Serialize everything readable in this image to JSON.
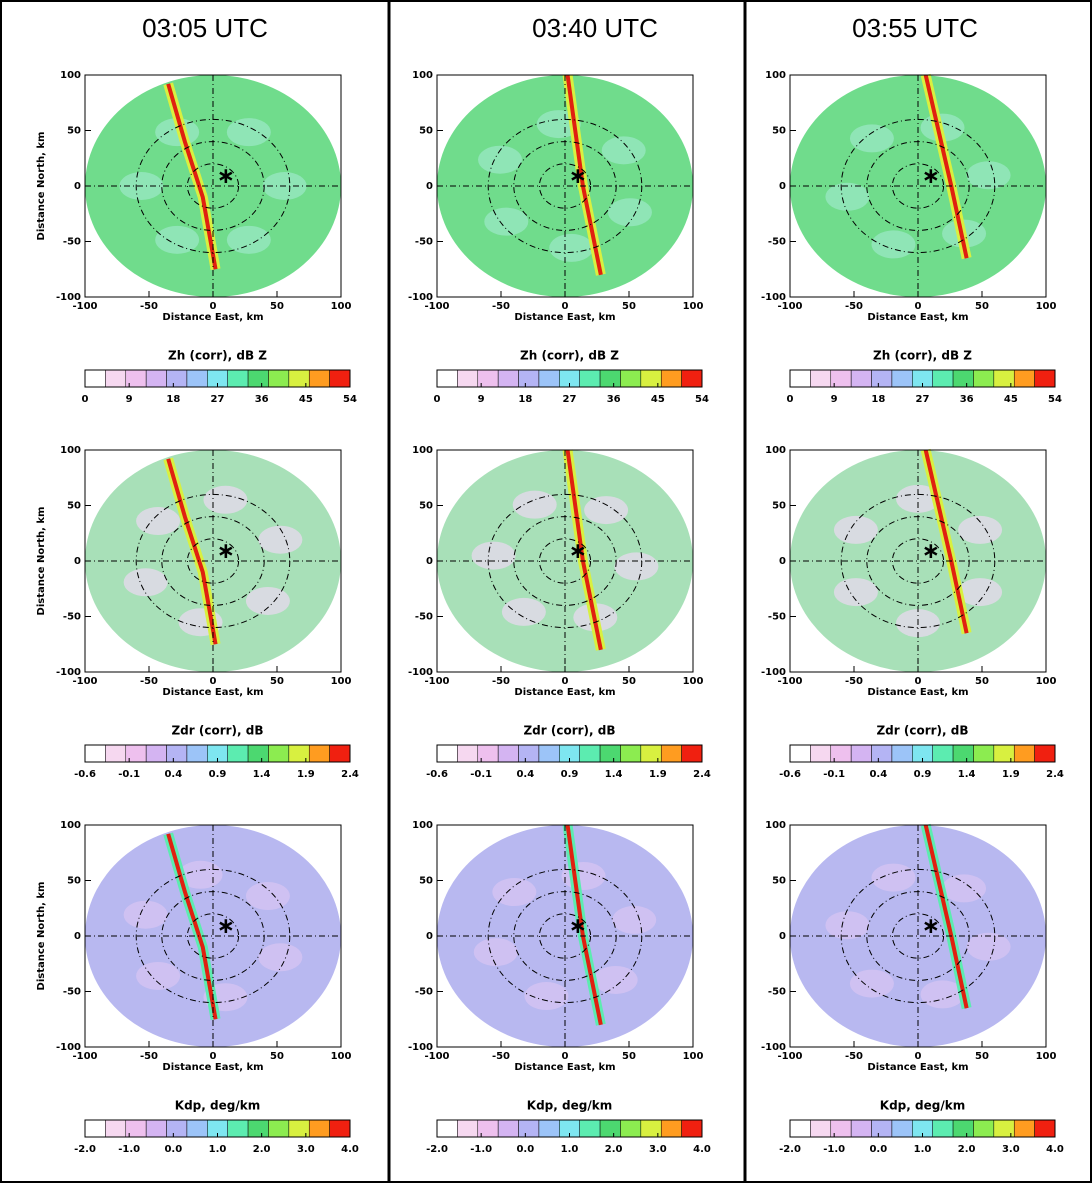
{
  "columns": [
    {
      "title": "03:05 UTC"
    },
    {
      "title": "03:40 UTC"
    },
    {
      "title": "03:55 UTC"
    }
  ],
  "panel": {
    "xlabel": "Distance East, km",
    "ylabel": "Distance North, km",
    "xlim": [
      -100,
      100
    ],
    "ylim": [
      -100,
      100
    ],
    "xticks": [
      -100,
      -50,
      0,
      50,
      100
    ],
    "yticks": [
      -100,
      -50,
      0,
      50,
      100
    ]
  },
  "colorbars": [
    {
      "label": "Zh (corr), dB Z",
      "ticks": [
        0,
        9,
        18,
        27,
        36,
        45,
        54
      ]
    },
    {
      "label": "Zdr (corr), dB",
      "ticks": [
        -0.6,
        -0.1,
        0.4,
        0.9,
        1.4,
        1.9,
        2.4
      ]
    },
    {
      "label": "Kdp, deg/km",
      "ticks": [
        {
          "value": -2,
          "label": "-2.0"
        },
        {
          "value": -1,
          "label": "-1.0"
        },
        {
          "value": 0,
          "label": "0.0"
        },
        {
          "value": 1,
          "label": "1.0"
        },
        {
          "value": 2,
          "label": "2.0"
        },
        {
          "value": 3,
          "label": "3.0"
        },
        {
          "value": 4,
          "label": "4.0"
        }
      ]
    }
  ],
  "colors": [
    "#ffffff",
    "#f6d8f0",
    "#eec0ee",
    "#d4b4f2",
    "#b4b4f4",
    "#9cc4f8",
    "#7ee6f0",
    "#5cecb0",
    "#4cd870",
    "#8cec50",
    "#d8f040",
    "#ff9c20",
    "#f02010"
  ]
}
